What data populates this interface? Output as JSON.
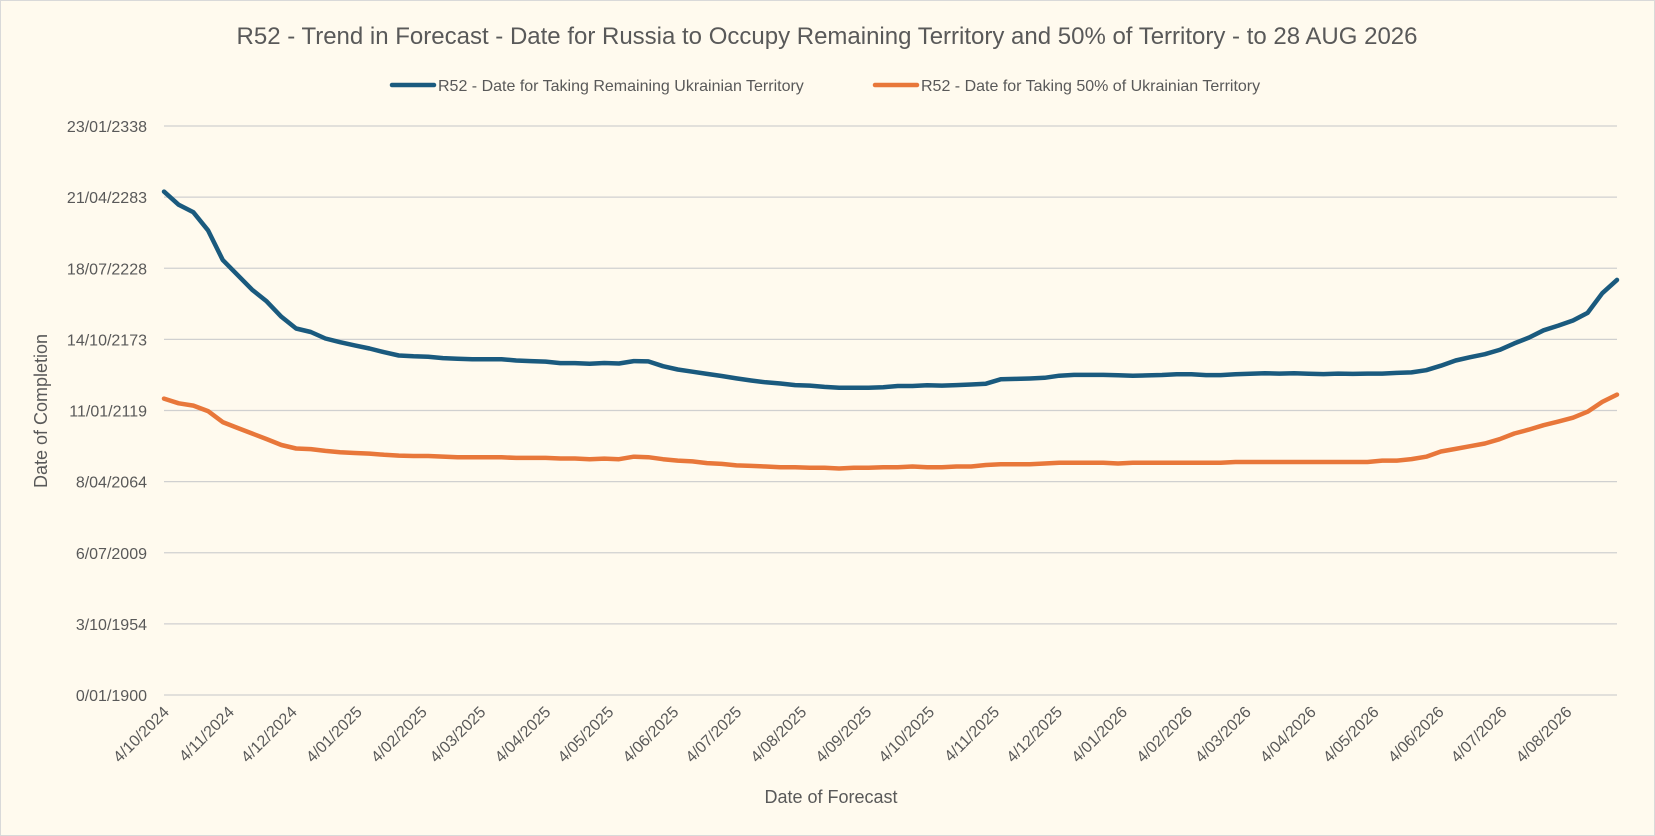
{
  "chart_data": {
    "type": "line",
    "title": "R52 - Trend in Forecast - Date for Russia to Occupy Remaining Territory and 50% of Territory - to 28 AUG 2026",
    "xlabel": "Date of Forecast",
    "ylabel": "Date of Completion",
    "legend_position": "top",
    "grid": true,
    "x_range": [
      "4/10/2024",
      "28/08/2026"
    ],
    "x_ticks": [
      "4/10/2024",
      "4/11/2024",
      "4/12/2024",
      "4/01/2025",
      "4/02/2025",
      "4/03/2025",
      "4/04/2025",
      "4/05/2025",
      "4/06/2025",
      "4/07/2025",
      "4/08/2025",
      "4/09/2025",
      "4/10/2025",
      "4/11/2025",
      "4/12/2025",
      "4/01/2026",
      "4/02/2026",
      "4/03/2026",
      "4/04/2026",
      "4/05/2026",
      "4/06/2026",
      "4/07/2026",
      "4/08/2026"
    ],
    "y_ticks": [
      "0/01/1900",
      "3/10/1954",
      "6/07/2009",
      "8/04/2064",
      "11/01/2119",
      "14/10/2173",
      "18/07/2228",
      "21/04/2283",
      "23/01/2338"
    ],
    "y_range": [
      "0/01/1900",
      "23/01/2338"
    ],
    "series": [
      {
        "name": "R52 - Date for Taking Remaining Ukrainian Territory",
        "color": "#1a5a7e",
        "points": [
          [
            "4/10/2024",
            "15/07/2287"
          ],
          [
            "11/10/2024",
            "22/05/2277"
          ],
          [
            "18/10/2024",
            "04/08/2271"
          ],
          [
            "25/10/2024",
            "22/09/2257"
          ],
          [
            "01/11/2024",
            "28/12/2234"
          ],
          [
            "08/11/2024",
            "30/06/2223"
          ],
          [
            "15/11/2024",
            "03/01/2212"
          ],
          [
            "22/11/2024",
            "10/01/2203"
          ],
          [
            "29/11/2024",
            "15/03/2191"
          ],
          [
            "06/12/2024",
            "22/02/2182"
          ],
          [
            "13/12/2024",
            "01/07/2179"
          ],
          [
            "20/12/2024",
            "25/06/2174"
          ],
          [
            "27/12/2024",
            "30/07/2171"
          ],
          [
            "03/01/2025",
            "20/02/2169"
          ],
          [
            "10/01/2025",
            "18/10/2166"
          ],
          [
            "17/01/2025",
            "04/12/2163"
          ],
          [
            "24/01/2025",
            "27/05/2161"
          ],
          [
            "31/01/2025",
            "08/10/2160"
          ],
          [
            "07/02/2025",
            "24/06/2160"
          ],
          [
            "14/02/2025",
            "20/05/2159"
          ],
          [
            "21/02/2025",
            "12/12/2158"
          ],
          [
            "28/02/2025",
            "28/06/2158"
          ],
          [
            "07/03/2025",
            "28/06/2158"
          ],
          [
            "14/03/2025",
            "28/06/2158"
          ],
          [
            "21/03/2025",
            "01/07/2157"
          ],
          [
            "28/03/2025",
            "16/01/2157"
          ],
          [
            "04/04/2025",
            "05/09/2156"
          ],
          [
            "11/04/2025",
            "11/07/2155"
          ],
          [
            "18/04/2025",
            "27/06/2155"
          ],
          [
            "25/04/2025",
            "26/01/2155"
          ],
          [
            "02/05/2025",
            "08/08/2155"
          ],
          [
            "09/05/2025",
            "20/03/2155"
          ],
          [
            "16/05/2025",
            "29/01/2157"
          ],
          [
            "23/05/2025",
            "08/11/2156"
          ],
          [
            "30/05/2025",
            "14/02/2153"
          ],
          [
            "06/06/2025",
            "25/07/2150"
          ],
          [
            "13/06/2025",
            "17/11/2148"
          ],
          [
            "20/06/2025",
            "07/03/2147"
          ],
          [
            "27/06/2025",
            "26/07/2145"
          ],
          [
            "04/07/2025",
            "12/10/2143"
          ],
          [
            "11/07/2025",
            "01/03/2142"
          ],
          [
            "18/07/2025",
            "22/09/2140"
          ],
          [
            "25/07/2025",
            "29/10/2139"
          ],
          [
            "01/08/2025",
            "19/07/2138"
          ],
          [
            "08/08/2025",
            "29/02/2138"
          ],
          [
            "15/08/2025",
            "07/03/2137"
          ],
          [
            "22/08/2025",
            "04/07/2136"
          ],
          [
            "29/08/2025",
            "04/07/2136"
          ],
          [
            "05/09/2025",
            "04/07/2136"
          ],
          [
            "12/09/2025",
            "06/12/2136"
          ],
          [
            "19/09/2025",
            "20/11/2137"
          ],
          [
            "26/09/2025",
            "20/11/2137"
          ],
          [
            "03/10/2025",
            "17/07/2138"
          ],
          [
            "10/10/2025",
            "21/03/2138"
          ],
          [
            "17/10/2025",
            "06/08/2138"
          ],
          [
            "24/10/2025",
            "11/01/2139"
          ],
          [
            "31/10/2025",
            "12/09/2139"
          ],
          [
            "07/11/2025",
            "07/01/2143"
          ],
          [
            "14/11/2025",
            "04/05/2143"
          ],
          [
            "21/11/2025",
            "05/09/2143"
          ],
          [
            "28/11/2025",
            "07/03/2144"
          ],
          [
            "05/12/2025",
            "29/10/2145"
          ],
          [
            "12/12/2025",
            "01/06/2146"
          ],
          [
            "19/12/2025",
            "01/06/2146"
          ],
          [
            "26/12/2025",
            "01/06/2146"
          ],
          [
            "02/01/2026",
            "17/03/2146"
          ],
          [
            "09/01/2026",
            "01/10/2145"
          ],
          [
            "16/01/2026",
            "12/01/2146"
          ],
          [
            "23/01/2026",
            "03/05/2146"
          ],
          [
            "30/01/2026",
            "28/12/2146"
          ],
          [
            "06/02/2026",
            "28/12/2146"
          ],
          [
            "13/02/2026",
            "24/04/2146"
          ],
          [
            "20/02/2026",
            "24/04/2146"
          ],
          [
            "27/02/2026",
            "26/11/2146"
          ],
          [
            "06/03/2026",
            "13/05/2147"
          ],
          [
            "13/03/2026",
            "04/09/2147"
          ],
          [
            "20/03/2026",
            "01/06/2147"
          ],
          [
            "27/03/2026",
            "19/08/2147"
          ],
          [
            "03/04/2026",
            "20/04/2147"
          ],
          [
            "10/04/2026",
            "24/01/2147"
          ],
          [
            "17/04/2026",
            "23/06/2147"
          ],
          [
            "24/04/2026",
            "30/03/2147"
          ],
          [
            "01/05/2026",
            "11/06/2147"
          ],
          [
            "08/05/2026",
            "11/06/2147"
          ],
          [
            "15/05/2026",
            "25/12/2147"
          ],
          [
            "22/05/2026",
            "15/05/2148"
          ],
          [
            "29/05/2026",
            "25/01/2150"
          ],
          [
            "05/06/2026",
            "21/07/2153"
          ],
          [
            "12/06/2026",
            "01/07/2157"
          ],
          [
            "19/06/2026",
            "22/01/2160"
          ],
          [
            "26/06/2026",
            "18/05/2162"
          ],
          [
            "03/07/2026",
            "20/09/2165"
          ],
          [
            "10/07/2026",
            "14/09/2170"
          ],
          [
            "17/07/2026",
            "06/03/2175"
          ],
          [
            "24/07/2026",
            "18/10/2180"
          ],
          [
            "31/07/2026",
            "31/05/2184"
          ],
          [
            "07/08/2026",
            "08/05/2188"
          ],
          [
            "14/08/2026",
            "15/03/2194"
          ],
          [
            "21/08/2026",
            "24/04/2209"
          ],
          [
            "28/08/2026",
            "05/08/2219"
          ]
        ]
      },
      {
        "name": "R52 - Date for Taking  50% of Ukrainian Territory",
        "color": "#e8773a",
        "points": [
          [
            "4/10/2024",
            "20/03/2128"
          ],
          [
            "11/10/2024",
            "19/07/2124"
          ],
          [
            "18/10/2024",
            "11/10/2122"
          ],
          [
            "25/10/2024",
            "13/07/2118"
          ],
          [
            "01/11/2024",
            "14/02/2110"
          ],
          [
            "08/11/2024",
            "30/08/2105"
          ],
          [
            "15/11/2024",
            "08/05/2101"
          ],
          [
            "22/11/2024",
            "16/01/2097"
          ],
          [
            "29/11/2024",
            "07/06/2092"
          ],
          [
            "06/12/2024",
            "17/10/2089"
          ],
          [
            "13/12/2024",
            "12/04/2089"
          ],
          [
            "20/12/2024",
            "22/11/2087"
          ],
          [
            "27/12/2024",
            "15/11/2086"
          ],
          [
            "03/01/2025",
            "06/05/2086"
          ],
          [
            "10/01/2025",
            "27/10/2085"
          ],
          [
            "17/01/2025",
            "21/11/2084"
          ],
          [
            "24/01/2025",
            "21/04/2084"
          ],
          [
            "31/01/2025",
            "14/01/2084"
          ],
          [
            "07/02/2025",
            "14/01/2084"
          ],
          [
            "14/02/2025",
            "06/07/2083"
          ],
          [
            "21/02/2025",
            "02/01/2083"
          ],
          [
            "28/02/2025",
            "02/01/2083"
          ],
          [
            "07/03/2025",
            "02/01/2083"
          ],
          [
            "14/03/2025",
            "02/01/2083"
          ],
          [
            "21/03/2025",
            "25/07/2082"
          ],
          [
            "28/03/2025",
            "25/07/2082"
          ],
          [
            "04/04/2025",
            "25/07/2082"
          ],
          [
            "11/04/2025",
            "15/01/2082"
          ],
          [
            "18/04/2025",
            "15/01/2082"
          ],
          [
            "25/04/2025",
            "15/07/2081"
          ],
          [
            "02/05/2025",
            "11/01/2082"
          ],
          [
            "09/05/2025",
            "15/07/2081"
          ],
          [
            "16/05/2025",
            "13/06/2083"
          ],
          [
            "23/05/2025",
            "14/01/2083"
          ],
          [
            "30/05/2025",
            "08/07/2081"
          ],
          [
            "06/06/2025",
            "05/06/2080"
          ],
          [
            "13/06/2025",
            "16/11/2079"
          ],
          [
            "20/06/2025",
            "15/07/2078"
          ],
          [
            "27/06/2025",
            "13/12/2077"
          ],
          [
            "04/07/2025",
            "04/10/2076"
          ],
          [
            "11/07/2025",
            "05/05/2076"
          ],
          [
            "18/07/2025",
            "01/12/2075"
          ],
          [
            "25/07/2025",
            "22/05/2075"
          ],
          [
            "01/08/2025",
            "22/05/2075"
          ],
          [
            "08/08/2025",
            "21/11/2074"
          ],
          [
            "15/08/2025",
            "21/11/2074"
          ],
          [
            "22/08/2025",
            "15/05/2074"
          ],
          [
            "29/08/2025",
            "09/12/2074"
          ],
          [
            "05/09/2025",
            "09/12/2074"
          ],
          [
            "12/09/2025",
            "21/05/2075"
          ],
          [
            "19/09/2025",
            "21/05/2075"
          ],
          [
            "26/09/2025",
            "30/11/2075"
          ],
          [
            "03/10/2025",
            "21/05/2075"
          ],
          [
            "10/10/2025",
            "21/05/2075"
          ],
          [
            "17/10/2025",
            "30/11/2075"
          ],
          [
            "24/10/2025",
            "30/11/2075"
          ],
          [
            "31/10/2025",
            "31/01/2077"
          ],
          [
            "07/11/2025",
            "12/09/2077"
          ],
          [
            "14/11/2025",
            "12/09/2077"
          ],
          [
            "21/11/2025",
            "12/09/2077"
          ],
          [
            "28/11/2025",
            "04/04/2078"
          ],
          [
            "05/12/2025",
            "25/10/2078"
          ],
          [
            "12/12/2025",
            "25/10/2078"
          ],
          [
            "19/12/2025",
            "25/10/2078"
          ],
          [
            "26/12/2025",
            "25/10/2078"
          ],
          [
            "02/01/2026",
            "04/04/2078"
          ],
          [
            "09/01/2026",
            "25/10/2078"
          ],
          [
            "16/01/2026",
            "25/10/2078"
          ],
          [
            "23/01/2026",
            "25/10/2078"
          ],
          [
            "30/01/2026",
            "25/10/2078"
          ],
          [
            "06/02/2026",
            "25/10/2078"
          ],
          [
            "13/02/2026",
            "25/10/2078"
          ],
          [
            "20/02/2026",
            "25/10/2078"
          ],
          [
            "27/02/2026",
            "17/05/2079"
          ],
          [
            "06/03/2026",
            "17/05/2079"
          ],
          [
            "13/03/2026",
            "17/05/2079"
          ],
          [
            "20/03/2026",
            "17/05/2079"
          ],
          [
            "27/03/2026",
            "17/05/2079"
          ],
          [
            "03/04/2026",
            "17/05/2079"
          ],
          [
            "10/04/2026",
            "17/05/2079"
          ],
          [
            "17/04/2026",
            "17/05/2079"
          ],
          [
            "24/04/2026",
            "17/05/2079"
          ],
          [
            "01/05/2026",
            "17/05/2079"
          ],
          [
            "08/05/2026",
            "29/06/2080"
          ],
          [
            "15/05/2026",
            "29/06/2080"
          ],
          [
            "22/05/2026",
            "11/08/2081"
          ],
          [
            "29/05/2026",
            "13/06/2083"
          ],
          [
            "05/06/2026",
            "07/06/2087"
          ],
          [
            "12/06/2026",
            "28/06/2089"
          ],
          [
            "19/06/2026",
            "20/07/2091"
          ],
          [
            "26/06/2026",
            "11/08/2093"
          ],
          [
            "03/07/2026",
            "25/11/2096"
          ],
          [
            "10/07/2026",
            "24/04/2101"
          ],
          [
            "17/07/2026",
            "24/04/2104"
          ],
          [
            "24/07/2026",
            "26/09/2107"
          ],
          [
            "31/07/2026",
            "14/06/2110"
          ],
          [
            "07/08/2026",
            "30/06/2113"
          ],
          [
            "14/08/2026",
            "14/02/2118"
          ],
          [
            "21/08/2026",
            "05/09/2125"
          ],
          [
            "28/08/2026",
            "31/03/2131"
          ]
        ]
      }
    ]
  }
}
